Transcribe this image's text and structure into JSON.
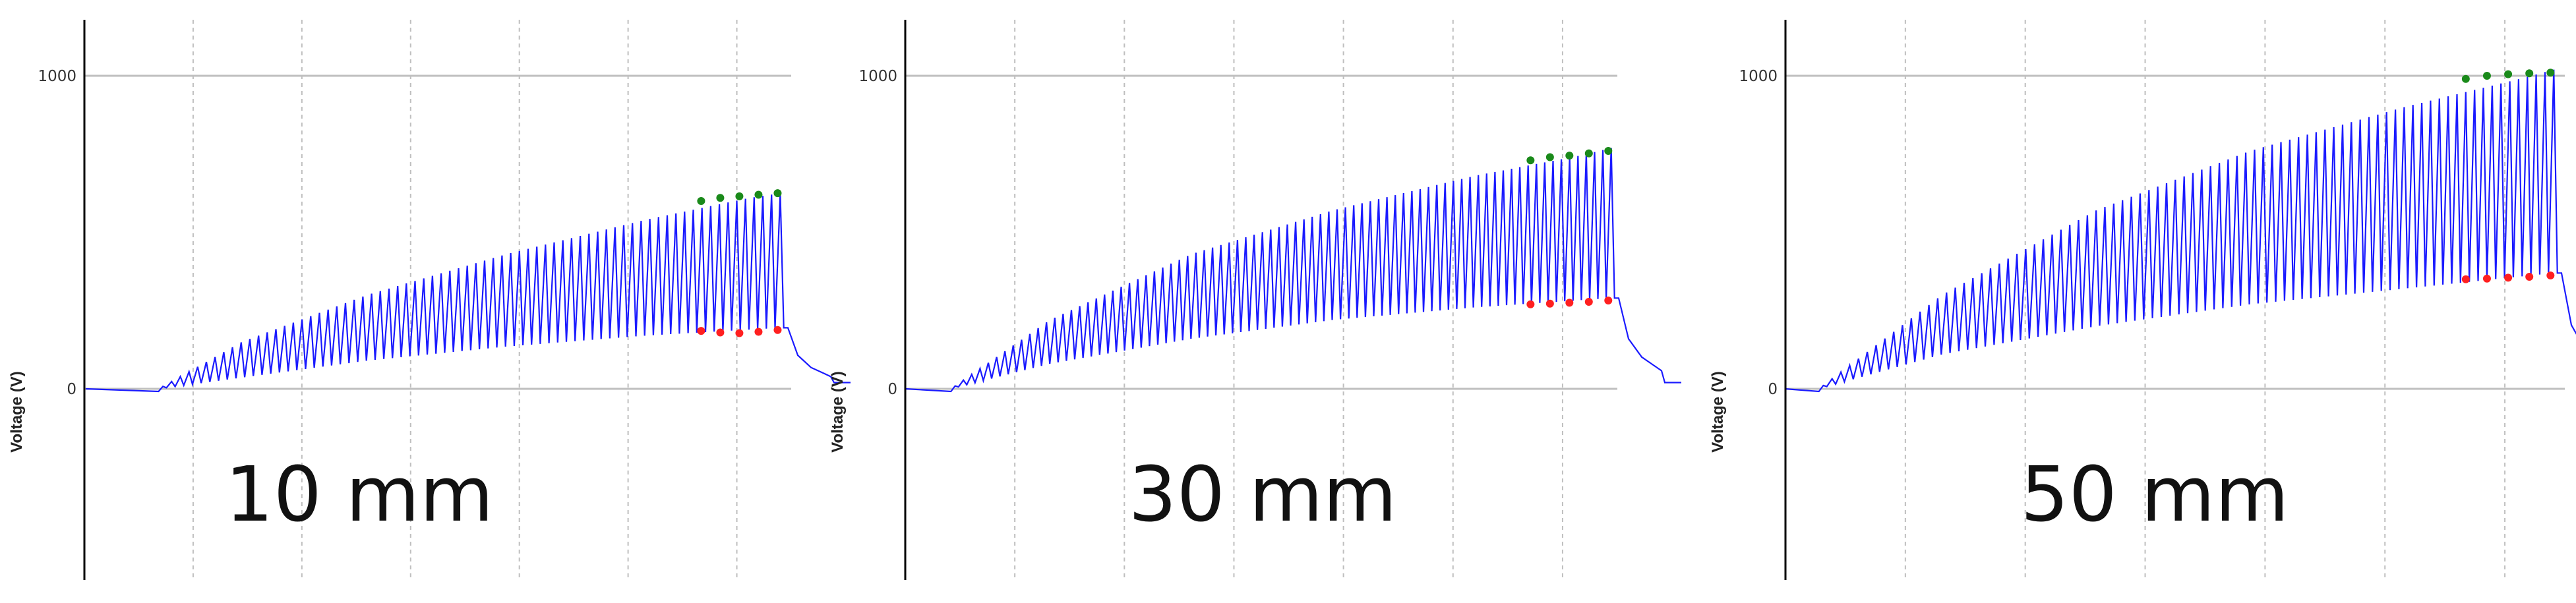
{
  "colors": {
    "trace": "#1a1aff",
    "peak_markers": "#1a8a1a",
    "trough_markers": "#ff2020",
    "grid": "#bfbfbf",
    "axis": "#000000"
  },
  "chart_data": [
    {
      "type": "line",
      "caption": "10 mm",
      "ylabel": "Voltage (V)",
      "yticks": [
        0,
        1000
      ],
      "ylim": [
        -600,
        1200
      ],
      "grid": true,
      "series": [
        {
          "role": "peak_envelope",
          "values": [
            [
              0.1,
              0
            ],
            [
              0.22,
              150
            ],
            [
              0.4,
              300
            ],
            [
              0.6,
              430
            ],
            [
              0.8,
              540
            ],
            [
              0.95,
              610
            ],
            [
              0.995,
              625
            ]
          ]
        },
        {
          "role": "trough_envelope",
          "values": [
            [
              0.1,
              0
            ],
            [
              0.2,
              30
            ],
            [
              0.4,
              90
            ],
            [
              0.6,
              135
            ],
            [
              0.8,
              170
            ],
            [
              0.995,
              195
            ]
          ]
        }
      ],
      "pulses": 72,
      "markers": {
        "peaks": [
          600,
          610,
          615,
          620,
          625
        ],
        "troughs": [
          185,
          180,
          178,
          182,
          188
        ]
      }
    },
    {
      "type": "line",
      "caption": "30 mm",
      "ylabel": "Voltage (V)",
      "yticks": [
        0,
        1000
      ],
      "ylim": [
        -600,
        1200
      ],
      "grid": true,
      "series": [
        {
          "role": "peak_envelope",
          "values": [
            [
              0.06,
              0
            ],
            [
              0.2,
              220
            ],
            [
              0.4,
              430
            ],
            [
              0.6,
              570
            ],
            [
              0.8,
              680
            ],
            [
              0.95,
              745
            ],
            [
              0.995,
              770
            ]
          ]
        },
        {
          "role": "trough_envelope",
          "values": [
            [
              0.06,
              0
            ],
            [
              0.2,
              80
            ],
            [
              0.4,
              160
            ],
            [
              0.6,
              220
            ],
            [
              0.8,
              260
            ],
            [
              0.995,
              290
            ]
          ]
        }
      ],
      "pulses": 80,
      "markers": {
        "peaks": [
          730,
          740,
          745,
          752,
          760
        ],
        "troughs": [
          270,
          272,
          275,
          278,
          282
        ]
      }
    },
    {
      "type": "line",
      "caption": "50 mm",
      "ylabel": "Voltage (V)",
      "yticks": [
        0,
        1000
      ],
      "ylim": [
        -600,
        1200
      ],
      "grid": true,
      "series": [
        {
          "role": "peak_envelope",
          "values": [
            [
              0.04,
              0
            ],
            [
              0.2,
              300
            ],
            [
              0.4,
              570
            ],
            [
              0.6,
              760
            ],
            [
              0.8,
              900
            ],
            [
              0.95,
              990
            ],
            [
              0.995,
              1020
            ]
          ]
        },
        {
          "role": "trough_envelope",
          "values": [
            [
              0.04,
              0
            ],
            [
              0.2,
              110
            ],
            [
              0.4,
              200
            ],
            [
              0.6,
              270
            ],
            [
              0.8,
              320
            ],
            [
              0.995,
              370
            ]
          ]
        }
      ],
      "pulses": 84,
      "markers": {
        "peaks": [
          990,
          1000,
          1005,
          1008,
          1010
        ],
        "troughs": [
          350,
          352,
          355,
          358,
          362
        ]
      }
    }
  ]
}
